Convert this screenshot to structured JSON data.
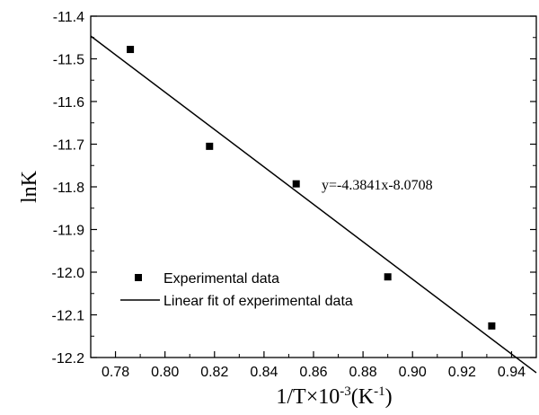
{
  "chart_data": {
    "type": "scatter",
    "title": "",
    "xlabel": "1/T×10",
    "xlabel_exponent": "-3",
    "xlabel_unit_open": "(K",
    "xlabel_unit_exponent": "-1",
    "xlabel_unit_close": ")",
    "ylabel": "lnK",
    "xlim": [
      0.77,
      0.95
    ],
    "ylim": [
      -12.2,
      -11.4
    ],
    "x_ticks": [
      0.78,
      0.8,
      0.82,
      0.84,
      0.86,
      0.88,
      0.9,
      0.92,
      0.94
    ],
    "x_tick_labels": [
      "0.78",
      "0.80",
      "0.82",
      "0.84",
      "0.86",
      "0.88",
      "0.90",
      "0.92",
      "0.94"
    ],
    "y_ticks": [
      -11.4,
      -11.5,
      -11.6,
      -11.7,
      -11.8,
      -11.9,
      -12.0,
      -12.1,
      -12.2
    ],
    "y_tick_labels": [
      "-11.4",
      "-11.5",
      "-11.6",
      "-11.7",
      "-11.8",
      "-11.9",
      "-12.0",
      "-12.1",
      "-12.2"
    ],
    "grid": false,
    "legend_position": "bottom-left",
    "series": [
      {
        "name": "Experimental data",
        "kind": "scatter",
        "marker": "square",
        "x": [
          0.786,
          0.818,
          0.853,
          0.89,
          0.932
        ],
        "y": [
          -11.478,
          -11.705,
          -11.793,
          -12.011,
          -12.126
        ]
      },
      {
        "name": "Linear fit of experimental data",
        "kind": "line",
        "slope": -4.3841,
        "intercept": -8.0708,
        "x": [
          0.77,
          0.95
        ]
      }
    ],
    "annotation": "y=-4.3841x-8.0708",
    "colors": {
      "marker": "#000000",
      "line": "#000000"
    }
  }
}
